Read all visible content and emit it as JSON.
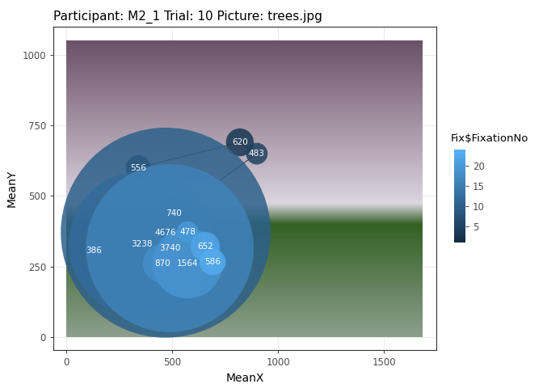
{
  "chart_data": {
    "type": "scatter",
    "title": "Participant: M2_1 Trial: 10 Picture: trees.jpg",
    "x_label": "MeanX",
    "y_label": "MeanY",
    "x": [
      340,
      820,
      900,
      508,
      470,
      355,
      130,
      489,
      454,
      573,
      573,
      656,
      691
    ],
    "y": [
      600,
      690,
      650,
      438,
      370,
      330,
      307,
      315,
      261,
      261,
      372,
      321,
      266
    ],
    "duration": [
      556,
      620,
      483,
      740,
      4676,
      3238,
      386,
      3740,
      870,
      1564,
      478,
      652,
      586
    ],
    "fixation_no": [
      1,
      3,
      5,
      8,
      10,
      12,
      14,
      16,
      18,
      19,
      20,
      22,
      23
    ],
    "data_labels": true,
    "image_xlim": [
      0,
      1680
    ],
    "image_ylim": [
      0,
      1050
    ],
    "xlim": [
      -61,
      1748
    ],
    "ylim": [
      -46,
      1100
    ],
    "xticks": [
      0,
      500,
      1000,
      1500
    ],
    "yticks": [
      0,
      250,
      500,
      750,
      1000
    ],
    "grid": true,
    "colorbar_label": "Fix$FixationNo",
    "colorbar_lim": [
      1,
      24
    ],
    "colorbar_ticks": [
      5,
      10,
      15,
      20
    ]
  }
}
